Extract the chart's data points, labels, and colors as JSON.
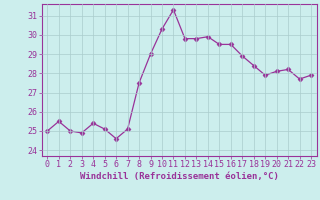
{
  "x": [
    0,
    1,
    2,
    3,
    4,
    5,
    6,
    7,
    8,
    9,
    10,
    11,
    12,
    13,
    14,
    15,
    16,
    17,
    18,
    19,
    20,
    21,
    22,
    23
  ],
  "y": [
    25.0,
    25.5,
    25.0,
    24.9,
    25.4,
    25.1,
    24.6,
    25.1,
    27.5,
    29.0,
    30.3,
    31.3,
    29.8,
    29.8,
    29.9,
    29.5,
    29.5,
    28.9,
    28.4,
    27.9,
    28.1,
    28.2,
    27.7,
    27.9
  ],
  "line_color": "#993399",
  "marker": "D",
  "marker_size": 2.5,
  "background_color": "#cceeed",
  "grid_color": "#aacccc",
  "xlabel": "Windchill (Refroidissement éolien,°C)",
  "ylabel": "",
  "ylim": [
    23.7,
    31.6
  ],
  "xlim": [
    -0.5,
    23.5
  ],
  "yticks": [
    24,
    25,
    26,
    27,
    28,
    29,
    30,
    31
  ],
  "xticks": [
    0,
    1,
    2,
    3,
    4,
    5,
    6,
    7,
    8,
    9,
    10,
    11,
    12,
    13,
    14,
    15,
    16,
    17,
    18,
    19,
    20,
    21,
    22,
    23
  ],
  "tick_color": "#993399",
  "label_fontsize": 6.5,
  "tick_fontsize": 6,
  "spine_color": "#993399",
  "font_family": "monospace"
}
